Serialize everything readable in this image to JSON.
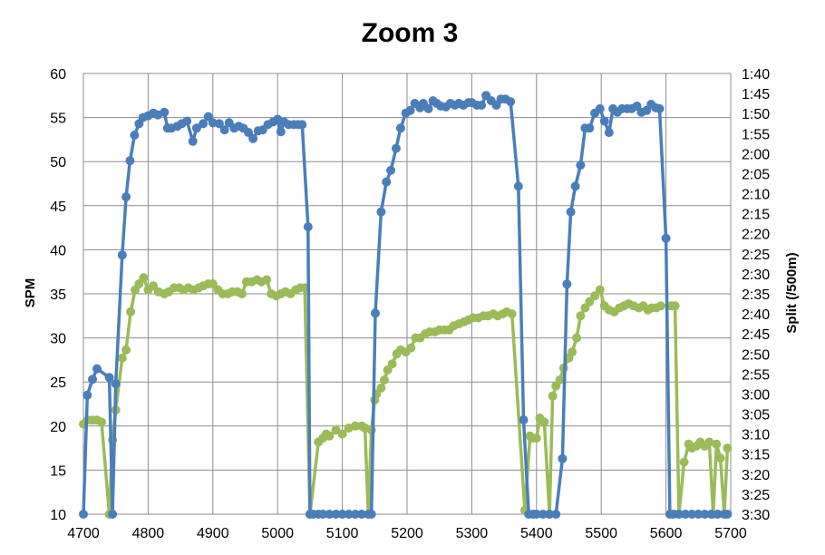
{
  "chart_data": {
    "type": "line",
    "title": "Zoom 3",
    "ylabel": "SPM",
    "y2label": "Split (/500m)",
    "xlim": [
      4700,
      5700
    ],
    "ylim": [
      10,
      60
    ],
    "x_ticks": [
      "4700",
      "4800",
      "4900",
      "5000",
      "5100",
      "5200",
      "5300",
      "5400",
      "5500",
      "5600",
      "5700"
    ],
    "y_ticks": [
      "10",
      "15",
      "20",
      "25",
      "30",
      "35",
      "40",
      "45",
      "50",
      "55",
      "60"
    ],
    "y2_ticks": [
      "3:30",
      "3:25",
      "3:20",
      "3:15",
      "3:10",
      "3:05",
      "3:00",
      "2:55",
      "2:50",
      "2:45",
      "2:40",
      "2:35",
      "2:30",
      "2:25",
      "2:20",
      "2:15",
      "2:10",
      "2:05",
      "2:00",
      "1:55",
      "1:50",
      "1:45",
      "1:40"
    ],
    "y2lim_seconds": [
      210,
      100
    ],
    "grid": true,
    "legend": "none",
    "series": [
      {
        "axis": "left",
        "color": "#4a7ebb",
        "x": [
          4700,
          4706,
          4714,
          4721,
          4740,
          4745,
          4750,
          4760,
          4766,
          4772,
          4779,
          4786,
          4792,
          4800,
          4808,
          4815,
          4825,
          4830,
          4836,
          4845,
          4852,
          4860,
          4869,
          4875,
          4885,
          4893,
          4900,
          4910,
          4918,
          4925,
          4933,
          4940,
          4947,
          4955,
          4962,
          4970,
          4977,
          4985,
          4993,
          5000,
          5005,
          5010,
          5017,
          5025,
          5032,
          5038,
          5047,
          5050,
          5055,
          5063,
          5070,
          5080,
          5090,
          5100,
          5110,
          5120,
          5130,
          5140,
          5145,
          5151,
          5160,
          5168,
          5175,
          5183,
          5190,
          5198,
          5205,
          5212,
          5220,
          5225,
          5233,
          5240,
          5246,
          5252,
          5260,
          5267,
          5274,
          5280,
          5287,
          5295,
          5300,
          5308,
          5315,
          5322,
          5330,
          5338,
          5345,
          5352,
          5360,
          5372,
          5380,
          5388,
          5395,
          5400,
          5410,
          5420,
          5430,
          5440,
          5447,
          5453,
          5460,
          5468,
          5475,
          5482,
          5490,
          5498,
          5505,
          5512,
          5518,
          5525,
          5532,
          5540,
          5547,
          5555,
          5562,
          5570,
          5577,
          5584,
          5590,
          5600,
          5606,
          5612,
          5620,
          5630,
          5640,
          5650,
          5660,
          5670,
          5680,
          5690,
          5695
        ],
        "values": [
          10,
          23.5,
          25.3,
          26.5,
          25.5,
          10,
          24.8,
          39.4,
          46,
          50.1,
          53,
          54.3,
          55,
          55.2,
          55.5,
          55.3,
          55.6,
          53.8,
          53.8,
          54,
          54.3,
          54.6,
          52.3,
          53.8,
          54.3,
          55.1,
          54.4,
          54.3,
          53.6,
          54.4,
          53.8,
          54,
          53.8,
          53.3,
          52.6,
          53.5,
          53.6,
          54.2,
          54.5,
          54.8,
          53.4,
          54.5,
          54.2,
          54.2,
          54.2,
          54.2,
          42.6,
          10,
          10,
          10,
          10,
          10,
          10,
          10,
          10,
          10,
          10,
          10,
          10,
          32.8,
          44.3,
          47.7,
          49,
          51.5,
          53.8,
          55.5,
          55.8,
          56.6,
          56.1,
          56.6,
          56,
          56.9,
          56.6,
          56.3,
          56.2,
          56.6,
          56.4,
          56.6,
          56.4,
          56.7,
          56.7,
          56.4,
          56.4,
          57.5,
          56.9,
          56.4,
          57.1,
          57.1,
          56.8,
          47.2,
          20.7,
          10,
          10,
          10,
          10,
          10,
          10,
          16.3,
          36.1,
          44.3,
          47.2,
          49.6,
          53.8,
          53.8,
          55.5,
          56,
          54.6,
          53.3,
          56,
          55.6,
          56,
          56,
          56,
          56.3,
          55.6,
          55.8,
          56.5,
          56.1,
          56,
          41.3,
          10,
          10,
          10,
          10,
          10,
          10,
          10,
          10,
          10,
          10,
          10
        ]
      },
      {
        "axis": "right",
        "color": "#9bbb59",
        "x": [
          4700,
          4707,
          4714,
          4721,
          4728,
          4740,
          4745,
          4750,
          4760,
          4766,
          4773,
          4780,
          4786,
          4793,
          4800,
          4808,
          4816,
          4825,
          4832,
          4840,
          4848,
          4855,
          4862,
          4870,
          4878,
          4885,
          4893,
          4900,
          4908,
          4915,
          4923,
          4930,
          4938,
          4945,
          4952,
          4960,
          4968,
          4975,
          4983,
          4990,
          4998,
          5005,
          5012,
          5020,
          5028,
          5035,
          5042,
          5050,
          5063,
          5070,
          5075,
          5080,
          5090,
          5100,
          5110,
          5120,
          5130,
          5135,
          5140,
          5145,
          5150,
          5153,
          5160,
          5165,
          5170,
          5177,
          5184,
          5190,
          5198,
          5206,
          5213,
          5220,
          5228,
          5235,
          5243,
          5250,
          5258,
          5265,
          5272,
          5280,
          5288,
          5295,
          5302,
          5310,
          5318,
          5325,
          5333,
          5340,
          5348,
          5354,
          5362,
          5382,
          5390,
          5395,
          5400,
          5405,
          5412,
          5420,
          5425,
          5430,
          5436,
          5442,
          5450,
          5455,
          5462,
          5468,
          5475,
          5482,
          5490,
          5498,
          5505,
          5512,
          5520,
          5528,
          5535,
          5542,
          5550,
          5558,
          5565,
          5572,
          5578,
          5585,
          5592,
          5608,
          5614,
          5620,
          5628,
          5635,
          5640,
          5647,
          5653,
          5660,
          5667,
          5673,
          5678,
          5684,
          5690,
          5695
        ],
        "y2_seconds": [
          187.5,
          186.5,
          186.5,
          186.5,
          187,
          210,
          191.5,
          184,
          171,
          169,
          159.5,
          154,
          152.5,
          151,
          154,
          153,
          154.5,
          155,
          154.5,
          153.5,
          153.5,
          154,
          153.5,
          154,
          153.5,
          153,
          152.5,
          152.5,
          154,
          155,
          155,
          154.5,
          154.5,
          155,
          152,
          152,
          151.5,
          152,
          151.5,
          155,
          155.5,
          155,
          154.5,
          155,
          154,
          153.5,
          153.5,
          210,
          192,
          191,
          190,
          190.5,
          189,
          190,
          188.5,
          188,
          188,
          188.5,
          210,
          189,
          181.5,
          180,
          178.5,
          176.5,
          174,
          172.5,
          170,
          169,
          169.5,
          168.5,
          166,
          166,
          165,
          164.5,
          164.5,
          164,
          164,
          164,
          163,
          162.5,
          162,
          161.5,
          161,
          161,
          160.5,
          160.5,
          160,
          160.5,
          160,
          159.5,
          160,
          209,
          190.5,
          191,
          191,
          186,
          187,
          210,
          180.5,
          178,
          176.5,
          173.5,
          171,
          169.5,
          166,
          160.5,
          158.5,
          157,
          155.5,
          154,
          158,
          159,
          159.5,
          158.5,
          158,
          157.5,
          158,
          158.5,
          158,
          159,
          158.5,
          158.5,
          158,
          158,
          158,
          210,
          197,
          192.5,
          193.5,
          193,
          192,
          193,
          192,
          210,
          192.5,
          196,
          210,
          193.5,
          192,
          192,
          196
        ]
      }
    ]
  }
}
